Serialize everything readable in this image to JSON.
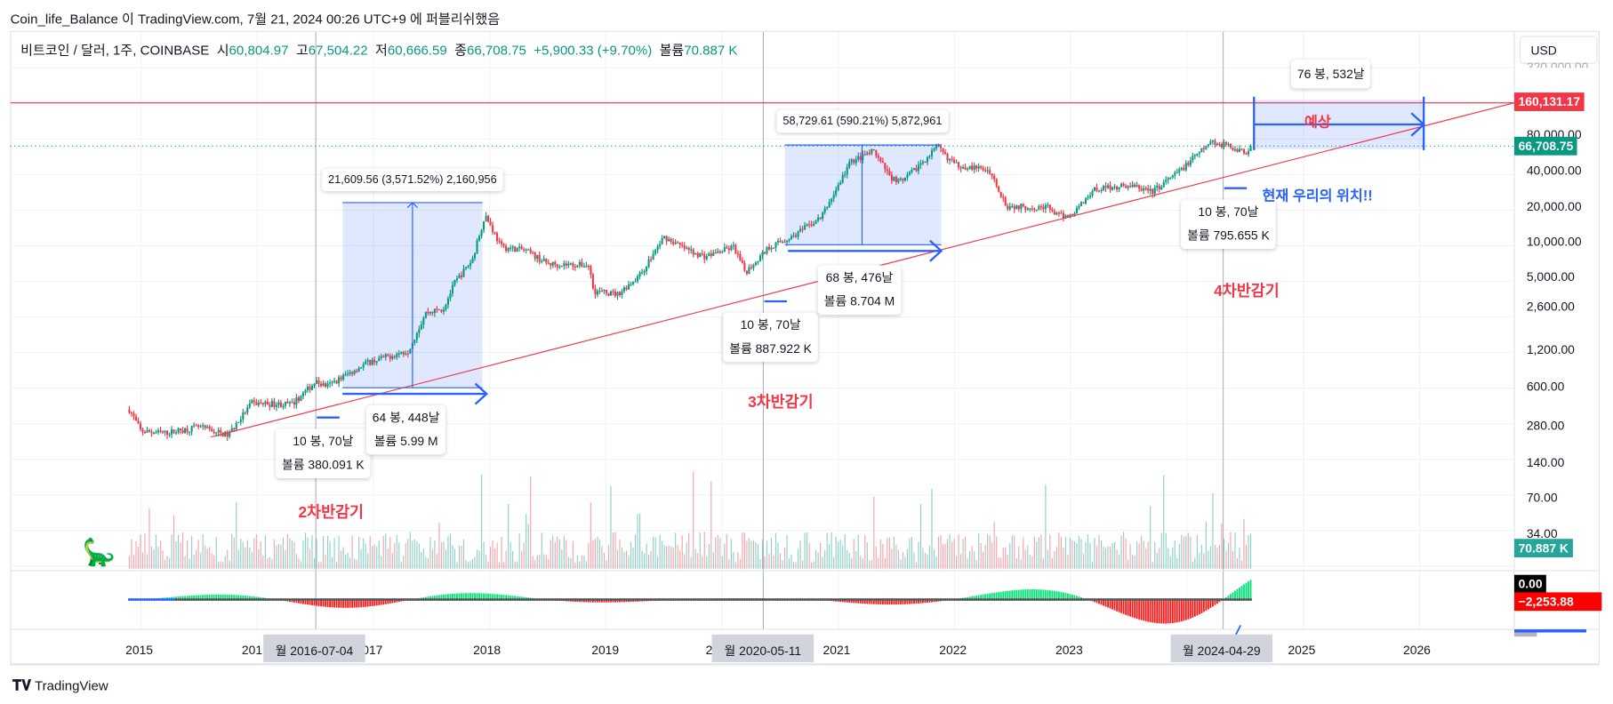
{
  "publish_line": "Coin_life_Balance 이 TradingView.com, 7월 21, 2024 00:26 UTC+9 에 퍼블리쉬했음",
  "legend": {
    "symbol": "비트코인 / 달러, 1주, COINBASE",
    "open_label": "시",
    "open": "60,804.97",
    "high_label": "고",
    "high": "67,504.22",
    "low_label": "저",
    "low": "60,666.59",
    "close_label": "종",
    "close": "66,708.75",
    "change": "+5,900.33 (+9.70%)",
    "volume_label": "볼륨",
    "volume": "70.887 K"
  },
  "currency": "USD",
  "price_axis": [
    "320,000.00",
    "80,000.00",
    "40,000.00",
    "20,000.00",
    "10,000.00",
    "5,000.00",
    "2,600.00",
    "1,200.00",
    "600.00",
    "280.00",
    "140.00",
    "70.00",
    "34.00"
  ],
  "tags": {
    "target": "160,131.17",
    "last": "66,708.75",
    "volume": "70.887 K",
    "osc_zero": "0.00",
    "osc_value": "−2,253.88"
  },
  "years": [
    "2015",
    "201",
    "017",
    "2018",
    "2019",
    "2",
    "2021",
    "2022",
    "2023",
    "2025",
    "2026"
  ],
  "crosshair_dates": [
    "월 2016-07-04",
    "월 2020-05-11",
    "월 2024-04-29"
  ],
  "annotations": {
    "range1": "21,609.56 (3,571.52%) 2,160,956",
    "range2": "58,729.61 (590.21%) 5,872,961",
    "range3": "76 봉, 532날",
    "forecast": "예상",
    "box_a": [
      "10 봉, 70날",
      "볼륨 380.091 K"
    ],
    "box_b": [
      "64 봉, 448날",
      "볼륨 5.99 M"
    ],
    "box_c": [
      "10 봉, 70날",
      "볼륨 887.922 K"
    ],
    "box_d": [
      "68 봉, 476날",
      "볼륨 8.704 M"
    ],
    "box_e": [
      "10 봉, 70날",
      "볼륨 795.655 K"
    ],
    "halving2": "2차반감기",
    "halving3": "3차반감기",
    "halving4": "4차반감기",
    "current": "현재 우리의 위치!!"
  },
  "brand": "TradingView",
  "colors": {
    "up": "#089981",
    "down": "#f23645",
    "draw": "#2962ff"
  },
  "chart_data": {
    "type": "candlestick",
    "scale": "log",
    "anchors": [
      [
        2014.9,
        380
      ],
      [
        2015.0,
        250
      ],
      [
        2015.2,
        240
      ],
      [
        2015.5,
        270
      ],
      [
        2015.75,
        230
      ],
      [
        2015.95,
        430
      ],
      [
        2016.3,
        420
      ],
      [
        2016.5,
        650
      ],
      [
        2016.6,
        600
      ],
      [
        2016.95,
        950
      ],
      [
        2017.3,
        1200
      ],
      [
        2017.45,
        2500
      ],
      [
        2017.6,
        2700
      ],
      [
        2017.7,
        4500
      ],
      [
        2017.85,
        7000
      ],
      [
        2017.96,
        17000
      ],
      [
        2018.1,
        9000
      ],
      [
        2018.3,
        8500
      ],
      [
        2018.5,
        6500
      ],
      [
        2018.85,
        6300
      ],
      [
        2018.9,
        3800
      ],
      [
        2019.1,
        3600
      ],
      [
        2019.3,
        5300
      ],
      [
        2019.5,
        11000
      ],
      [
        2019.7,
        8500
      ],
      [
        2019.85,
        7500
      ],
      [
        2020.1,
        9000
      ],
      [
        2020.2,
        5500
      ],
      [
        2020.4,
        9000
      ],
      [
        2020.6,
        11000
      ],
      [
        2020.85,
        16000
      ],
      [
        2021.0,
        30000
      ],
      [
        2021.1,
        47000
      ],
      [
        2021.3,
        58000
      ],
      [
        2021.45,
        35000
      ],
      [
        2021.55,
        32000
      ],
      [
        2021.7,
        45000
      ],
      [
        2021.85,
        63000
      ],
      [
        2022.0,
        45000
      ],
      [
        2022.3,
        40000
      ],
      [
        2022.45,
        20000
      ],
      [
        2022.8,
        19500
      ],
      [
        2022.9,
        16500
      ],
      [
        2023.0,
        16600
      ],
      [
        2023.2,
        28000
      ],
      [
        2023.5,
        30000
      ],
      [
        2023.7,
        26500
      ],
      [
        2023.9,
        37000
      ],
      [
        2024.15,
        62000
      ],
      [
        2024.2,
        70000
      ],
      [
        2024.4,
        63000
      ],
      [
        2024.5,
        56000
      ],
      [
        2024.55,
        66708
      ]
    ]
  }
}
